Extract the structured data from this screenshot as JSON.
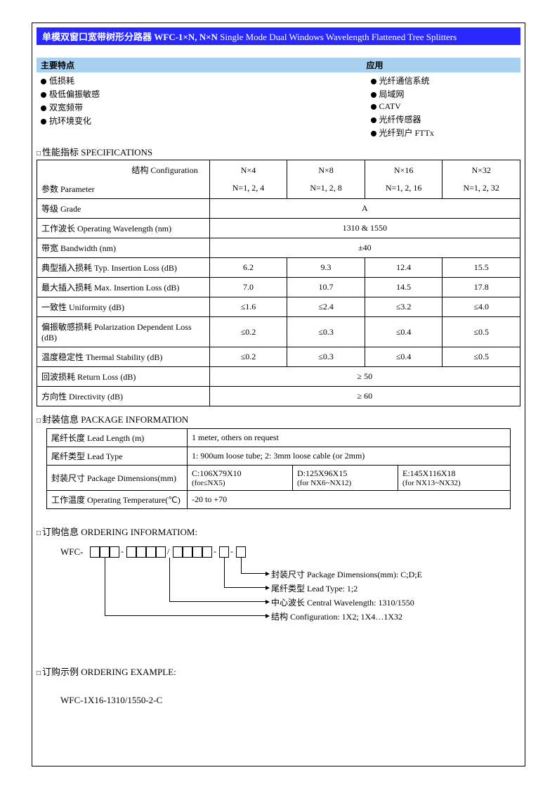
{
  "title_cn": "单模双窗口宽带树形分路器 WFC-1×N, N×N",
  "title_en": "Single Mode Dual Windows Wavelength Flattened Tree Splitters",
  "features_hdr1": "主要特点",
  "features_hdr2": "应用",
  "features": [
    "低损耗",
    "极低偏振敏感",
    "双宽频带",
    "抗环境变化"
  ],
  "applications": [
    "光纤通信系统",
    "局域网",
    "CATV",
    "光纤传感器",
    "光纤到户 FTTx"
  ],
  "spec_title": "性能指标  SPECIFICATIONS",
  "spec": {
    "config_label": "结构  Configuration",
    "param_label": "参数  Parameter",
    "cols": [
      {
        "c": "N×4",
        "n": "N=1, 2, 4"
      },
      {
        "c": "N×8",
        "n": "N=1, 2, 8"
      },
      {
        "c": "N×16",
        "n": "N=1, 2, 16"
      },
      {
        "c": "N×32",
        "n": "N=1, 2, 32"
      }
    ],
    "rows": [
      {
        "label": "等级  Grade",
        "span": "A"
      },
      {
        "label": "工作波长  Operating Wavelength (nm)",
        "span": "1310 & 1550"
      },
      {
        "label": "带宽  Bandwidth (nm)",
        "span": "±40"
      },
      {
        "label": "典型插入损耗  Typ. Insertion Loss (dB)",
        "vals": [
          "6.2",
          "9.3",
          "12.4",
          "15.5"
        ]
      },
      {
        "label": "最大插入损耗  Max. Insertion Loss (dB)",
        "vals": [
          "7.0",
          "10.7",
          "14.5",
          "17.8"
        ]
      },
      {
        "label": "一致性  Uniformity (dB)",
        "vals": [
          "≤1.6",
          "≤2.4",
          "≤3.2",
          "≤4.0"
        ]
      },
      {
        "label": "偏振敏感损耗  Polarization Dependent Loss (dB)",
        "vals": [
          "≤0.2",
          "≤0.3",
          "≤0.4",
          "≤0.5"
        ]
      },
      {
        "label": "温度稳定性  Thermal Stability (dB)",
        "vals": [
          "≤0.2",
          "≤0.3",
          "≤0.4",
          "≤0.5"
        ]
      },
      {
        "label": "回波损耗  Return Loss (dB)",
        "span": "≥ 50"
      },
      {
        "label": "方向性  Directivity (dB)",
        "span": "≥ 60"
      }
    ]
  },
  "pkg_title": "封装信息  PACKAGE INFORMATION",
  "pkg": {
    "r1_label": "尾纤长度  Lead Length (m)",
    "r1_val": "1 meter, others on request",
    "r2_label": "尾纤类型  Lead Type",
    "r2_val": "1: 900um loose tube;          2: 3mm loose cable (or 2mm)",
    "r3_label": "封装尺寸 Package Dimensions(mm)",
    "r3_c1a": "C:106X79X10",
    "r3_c1b": "(for≤NX5)",
    "r3_c2a": "D:125X96X15",
    "r3_c2b": "(for NX6~NX12)",
    "r3_c3a": "E:145X116X18",
    "r3_c3b": "(for NX13~NX32)",
    "r4_label": "工作温度 Operating Temperature(℃)",
    "r4_val": "-20 to +70"
  },
  "ordering_title": "订购信息  ORDERING INFORMATIOM:",
  "ordering_prefix": "WFC-",
  "ord_lines": [
    "封装尺寸 Package Dimensions(mm): C;D;E",
    "尾纤类型  Lead Type: 1;2",
    "中心波长 Central Wavelength: 1310/1550",
    "结构 Configuration: 1X2; 1X4…1X32"
  ],
  "example_title": "订购示例  ORDERING EXAMPLE:",
  "example_val": "WFC-1X16-1310/1550-2-C"
}
